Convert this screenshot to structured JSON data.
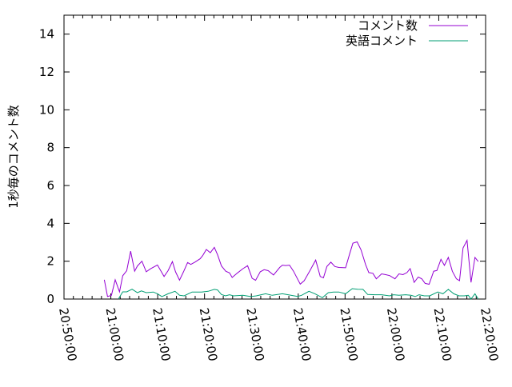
{
  "chart_data": {
    "type": "line",
    "title": "",
    "xlabel": "",
    "ylabel": "1秒毎のコメント数",
    "xlim": [
      "20:50:00",
      "22:20:00"
    ],
    "ylim": [
      0,
      15
    ],
    "xticks": [
      "20:50:00",
      "21:00:00",
      "21:10:00",
      "21:20:00",
      "21:30:00",
      "21:40:00",
      "21:50:00",
      "22:00:00",
      "22:10:00",
      "22:20:00"
    ],
    "yticks": [
      0,
      2,
      4,
      6,
      8,
      10,
      12,
      14
    ],
    "grid": false,
    "legend_position": "top-right",
    "series": [
      {
        "name": "コメント数",
        "color": "#9400d3",
        "points": [
          [
            "20:58:36",
            1.02
          ],
          [
            "20:59:17",
            0.13
          ],
          [
            "21:00:08",
            0.2
          ],
          [
            "21:00:56",
            1.02
          ],
          [
            "21:01:51",
            0.38
          ],
          [
            "21:02:32",
            1.23
          ],
          [
            "21:03:23",
            1.5
          ],
          [
            "21:04:14",
            2.53
          ],
          [
            "21:05:05",
            1.47
          ],
          [
            "21:05:41",
            1.75
          ],
          [
            "21:06:38",
            2.0
          ],
          [
            "21:07:33",
            1.44
          ],
          [
            "21:08:30",
            1.6
          ],
          [
            "21:09:57",
            1.8
          ],
          [
            "21:11:22",
            1.19
          ],
          [
            "21:12:13",
            1.5
          ],
          [
            "21:13:08",
            1.98
          ],
          [
            "21:13:48",
            1.44
          ],
          [
            "21:14:40",
            1.0
          ],
          [
            "21:15:31",
            1.44
          ],
          [
            "21:16:23",
            1.93
          ],
          [
            "21:17:04",
            1.83
          ],
          [
            "21:17:55",
            1.95
          ],
          [
            "21:19:04",
            2.13
          ],
          [
            "21:19:37",
            2.3
          ],
          [
            "21:20:23",
            2.62
          ],
          [
            "21:21:14",
            2.45
          ],
          [
            "21:22:05",
            2.73
          ],
          [
            "21:22:46",
            2.35
          ],
          [
            "21:23:37",
            1.75
          ],
          [
            "21:24:32",
            1.47
          ],
          [
            "21:25:20",
            1.38
          ],
          [
            "21:25:54",
            1.14
          ],
          [
            "21:27:02",
            1.38
          ],
          [
            "21:28:10",
            1.6
          ],
          [
            "21:29:12",
            1.76
          ],
          [
            "21:30:10",
            1.1
          ],
          [
            "21:30:54",
            0.99
          ],
          [
            "21:31:53",
            1.44
          ],
          [
            "21:32:44",
            1.55
          ],
          [
            "21:33:35",
            1.5
          ],
          [
            "21:34:44",
            1.27
          ],
          [
            "21:36:02",
            1.67
          ],
          [
            "21:36:37",
            1.79
          ],
          [
            "21:37:18",
            1.77
          ],
          [
            "21:38:09",
            1.79
          ],
          [
            "21:39:00",
            1.47
          ],
          [
            "21:40:26",
            0.79
          ],
          [
            "21:41:17",
            0.97
          ],
          [
            "21:42:26",
            1.47
          ],
          [
            "21:43:44",
            2.06
          ],
          [
            "21:44:42",
            1.19
          ],
          [
            "21:45:23",
            1.12
          ],
          [
            "21:46:07",
            1.72
          ],
          [
            "21:46:58",
            1.95
          ],
          [
            "21:47:50",
            1.72
          ],
          [
            "21:48:41",
            1.67
          ],
          [
            "21:50:07",
            1.65
          ],
          [
            "21:50:58",
            2.38
          ],
          [
            "21:51:40",
            2.95
          ],
          [
            "21:52:34",
            3.02
          ],
          [
            "21:53:25",
            2.6
          ],
          [
            "21:54:23",
            1.82
          ],
          [
            "21:55:04",
            1.4
          ],
          [
            "21:55:56",
            1.36
          ],
          [
            "21:56:40",
            1.07
          ],
          [
            "21:57:48",
            1.33
          ],
          [
            "21:58:40",
            1.29
          ],
          [
            "21:59:31",
            1.24
          ],
          [
            "22:00:39",
            1.07
          ],
          [
            "22:01:30",
            1.33
          ],
          [
            "22:02:22",
            1.29
          ],
          [
            "22:03:13",
            1.4
          ],
          [
            "22:03:54",
            1.61
          ],
          [
            "22:04:45",
            0.88
          ],
          [
            "22:05:37",
            1.16
          ],
          [
            "22:06:22",
            1.07
          ],
          [
            "22:07:05",
            0.83
          ],
          [
            "22:07:57",
            0.78
          ],
          [
            "22:08:55",
            1.47
          ],
          [
            "22:09:36",
            1.51
          ],
          [
            "22:10:28",
            2.1
          ],
          [
            "22:11:12",
            1.78
          ],
          [
            "22:12:03",
            2.2
          ],
          [
            "22:12:54",
            1.47
          ],
          [
            "22:13:46",
            1.07
          ],
          [
            "22:14:26",
            0.97
          ],
          [
            "22:15:11",
            2.7
          ],
          [
            "22:16:02",
            3.1
          ],
          [
            "22:16:53",
            0.88
          ],
          [
            "22:17:44",
            2.2
          ],
          [
            "22:18:26",
            1.98
          ]
        ]
      },
      {
        "name": "英語コメント",
        "color": "#009e73",
        "points": [
          [
            "21:01:37",
            0
          ],
          [
            "21:02:32",
            0.38
          ],
          [
            "21:03:23",
            0.38
          ],
          [
            "21:04:32",
            0.52
          ],
          [
            "21:05:41",
            0.34
          ],
          [
            "21:06:32",
            0.43
          ],
          [
            "21:07:33",
            0.34
          ],
          [
            "21:09:05",
            0.37
          ],
          [
            "21:09:57",
            0.28
          ],
          [
            "21:10:54",
            0.13
          ],
          [
            "21:12:13",
            0.28
          ],
          [
            "21:13:42",
            0.41
          ],
          [
            "21:14:40",
            0.2
          ],
          [
            "21:15:38",
            0.17
          ],
          [
            "21:17:21",
            0.37
          ],
          [
            "21:19:21",
            0.37
          ],
          [
            "21:20:46",
            0.41
          ],
          [
            "21:22:05",
            0.51
          ],
          [
            "21:22:46",
            0.48
          ],
          [
            "21:23:37",
            0.24
          ],
          [
            "21:24:29",
            0.17
          ],
          [
            "21:25:20",
            0.23
          ],
          [
            "21:26:11",
            0.17
          ],
          [
            "21:28:10",
            0.2
          ],
          [
            "21:29:53",
            0.13
          ],
          [
            "21:31:02",
            0.17
          ],
          [
            "21:33:02",
            0.28
          ],
          [
            "21:34:27",
            0.2
          ],
          [
            "21:36:37",
            0.28
          ],
          [
            "21:38:26",
            0.2
          ],
          [
            "21:39:52",
            0.14
          ],
          [
            "21:40:43",
            0.2
          ],
          [
            "21:42:18",
            0.41
          ],
          [
            "21:43:34",
            0.28
          ],
          [
            "21:45:10",
            0.07
          ],
          [
            "21:46:25",
            0.34
          ],
          [
            "21:47:33",
            0.37
          ],
          [
            "21:48:41",
            0.37
          ],
          [
            "21:50:07",
            0.28
          ],
          [
            "21:51:32",
            0.55
          ],
          [
            "21:52:41",
            0.52
          ],
          [
            "21:53:49",
            0.51
          ],
          [
            "21:54:50",
            0.24
          ],
          [
            "21:56:23",
            0.23
          ],
          [
            "21:57:48",
            0.23
          ],
          [
            "21:59:31",
            0.17
          ],
          [
            "22:00:22",
            0.23
          ],
          [
            "22:01:30",
            0.2
          ],
          [
            "22:02:56",
            0.23
          ],
          [
            "22:04:04",
            0.2
          ],
          [
            "22:04:58",
            0.13
          ],
          [
            "22:05:47",
            0.23
          ],
          [
            "22:06:55",
            0.17
          ],
          [
            "22:08:04",
            0.17
          ],
          [
            "22:09:47",
            0.37
          ],
          [
            "22:10:54",
            0.28
          ],
          [
            "22:12:03",
            0.51
          ],
          [
            "22:13:12",
            0.28
          ],
          [
            "22:14:20",
            0.17
          ],
          [
            "22:15:28",
            0.17
          ],
          [
            "22:16:19",
            0.2
          ],
          [
            "22:16:53",
            0
          ],
          [
            "22:17:44",
            0.28
          ],
          [
            "22:18:26",
            0
          ]
        ]
      }
    ]
  }
}
